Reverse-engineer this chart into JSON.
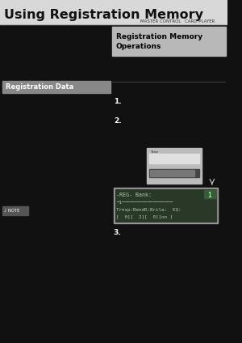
{
  "title": "Using Registration Memory",
  "subtitle_right1": "MASTER CONTROL",
  "subtitle_right2": "CARD PLAYER",
  "section_box_label1": "Registration Memory",
  "section_box_label2": "Operations",
  "left_section_label": "Registration Data",
  "step1": "1.",
  "step2": "2.",
  "step3": "3.",
  "note_label": "NOTE",
  "bg_color": "#111111",
  "header_bg": "#d8d8d8",
  "header_bottom_bg": "#1a1a1a",
  "section_box_bg": "#b8b8b8",
  "left_label_bg": "#888888",
  "title_color": "#111111",
  "white": "#ffffff",
  "gray_line": "#555555",
  "lcd_frame_color": "#999999",
  "lcd_screen_bg": "#2a3828",
  "lcd_text_color": "#aaccaa",
  "note_bg": "#555555"
}
